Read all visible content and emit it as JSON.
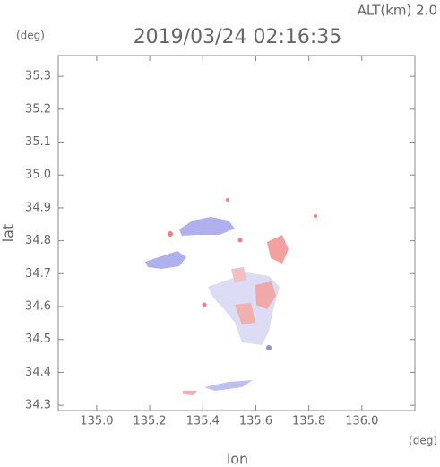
{
  "chart_data": {
    "type": "map",
    "title": "2019/03/24 02:16:35",
    "subtitle": "ALT(km) 2.0",
    "y_unit": "(deg)",
    "x_unit": "(deg)",
    "xlabel": "lon",
    "ylabel": "lat",
    "xlim": [
      134.855,
      136.2
    ],
    "ylim": [
      34.284,
      35.363
    ],
    "xticks": [
      {
        "value": 135,
        "label": "135.0"
      },
      135.2,
      135.4,
      135.6,
      135.8,
      {
        "value": 136,
        "label": "136.0"
      }
    ],
    "yticks": [
      34.3,
      34.4,
      34.5,
      34.6,
      34.7,
      34.8,
      34.9,
      {
        "value": 35,
        "label": "35.0"
      },
      35.1,
      35.2,
      35.3
    ]
  }
}
